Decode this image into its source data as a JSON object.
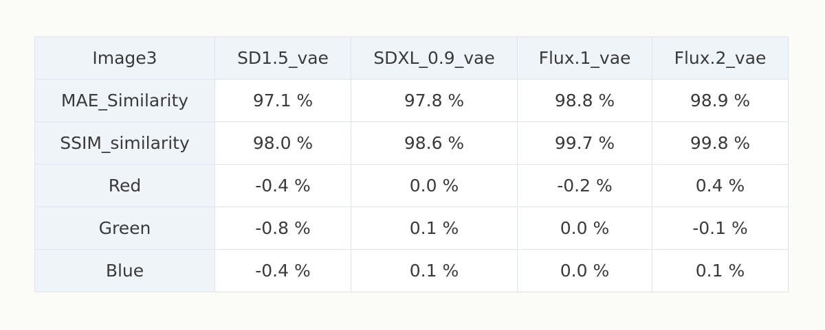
{
  "table": {
    "header": [
      "Image3",
      "SD1.5_vae",
      "SDXL_0.9_vae",
      "Flux.1_vae",
      "Flux.2_vae"
    ],
    "rows": [
      [
        "MAE_Similarity",
        "97.1 %",
        "97.8 %",
        "98.8 %",
        "98.9 %"
      ],
      [
        "SSIM_similarity",
        "98.0 %",
        "98.6 %",
        "99.7 %",
        "99.8 %"
      ],
      [
        "Red",
        "-0.4 %",
        "0.0 %",
        "-0.2 %",
        "0.4 %"
      ],
      [
        "Green",
        "-0.8 %",
        "0.1 %",
        "0.0 %",
        "-0.1 %"
      ],
      [
        "Blue",
        "-0.4 %",
        "0.1 %",
        "0.0 %",
        "0.1 %"
      ]
    ]
  }
}
